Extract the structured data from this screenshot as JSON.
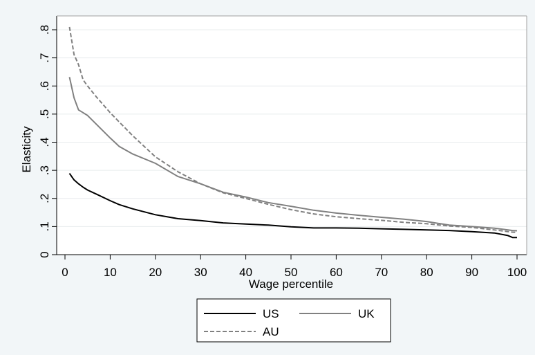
{
  "chart_data": {
    "type": "line",
    "title": "",
    "xlabel": "Wage percentile",
    "ylabel": "Elasticity",
    "xlim": [
      0,
      100
    ],
    "ylim": [
      0,
      0.8
    ],
    "x_ticks": [
      0,
      10,
      20,
      30,
      40,
      50,
      60,
      70,
      80,
      90,
      100
    ],
    "x_tick_labels": [
      "0",
      "10",
      "20",
      "30",
      "40",
      "50",
      "60",
      "70",
      "80",
      "90",
      "100"
    ],
    "y_ticks": [
      0,
      0.1,
      0.2,
      0.3,
      0.4,
      0.5,
      0.6,
      0.7,
      0.8
    ],
    "y_tick_labels": [
      "0",
      ".1",
      ".2",
      ".3",
      ".4",
      ".5",
      ".6",
      ".7",
      ".8"
    ],
    "grid": true,
    "legend_position": "bottom",
    "x": [
      1,
      2,
      3,
      4,
      5,
      7,
      10,
      12,
      15,
      20,
      25,
      30,
      35,
      40,
      45,
      50,
      55,
      60,
      65,
      70,
      75,
      80,
      85,
      90,
      95,
      98,
      99,
      100
    ],
    "series": [
      {
        "name": "US",
        "color": "#000000",
        "style": "solid",
        "values": [
          0.289,
          0.266,
          0.252,
          0.24,
          0.23,
          0.215,
          0.192,
          0.178,
          0.163,
          0.142,
          0.128,
          0.121,
          0.113,
          0.109,
          0.105,
          0.099,
          0.095,
          0.095,
          0.094,
          0.092,
          0.09,
          0.088,
          0.086,
          0.082,
          0.077,
          0.068,
          0.061,
          0.061
        ]
      },
      {
        "name": "UK",
        "color": "#808080",
        "style": "solid",
        "values": [
          0.632,
          0.558,
          0.515,
          0.505,
          0.495,
          0.463,
          0.415,
          0.385,
          0.358,
          0.325,
          0.278,
          0.252,
          0.222,
          0.205,
          0.185,
          0.172,
          0.158,
          0.148,
          0.14,
          0.133,
          0.126,
          0.118,
          0.105,
          0.1,
          0.094,
          0.088,
          0.086,
          0.085
        ]
      },
      {
        "name": "AU",
        "color": "#808080",
        "style": "dashed",
        "values": [
          0.81,
          0.712,
          0.676,
          0.622,
          0.6,
          0.56,
          0.505,
          0.472,
          0.423,
          0.348,
          0.295,
          0.252,
          0.22,
          0.2,
          0.179,
          0.16,
          0.145,
          0.135,
          0.128,
          0.122,
          0.115,
          0.11,
          0.102,
          0.097,
          0.088,
          0.082,
          0.08,
          0.079
        ]
      }
    ]
  },
  "colors": {
    "background": "#f2f6f8",
    "plot_area": "#ffffff",
    "grid": "#e8ecee",
    "frame": "#a0a0a0"
  }
}
